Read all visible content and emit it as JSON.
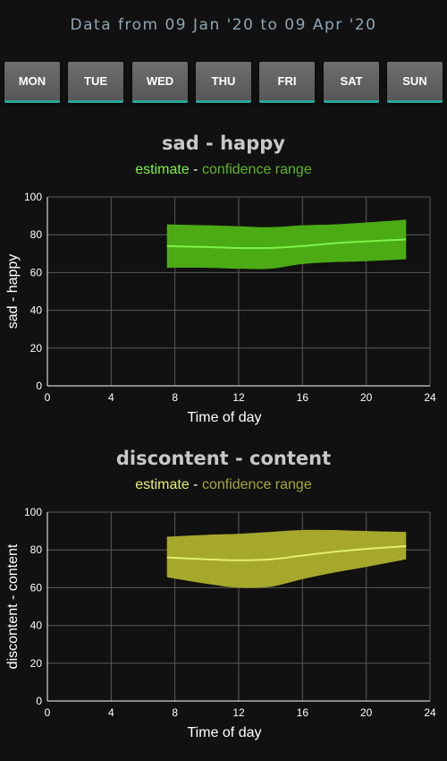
{
  "header": {
    "range_text": "Data from 09 Jan '20 to 09 Apr '20"
  },
  "days": [
    {
      "label": "MON"
    },
    {
      "label": "TUE"
    },
    {
      "label": "WED"
    },
    {
      "label": "THU"
    },
    {
      "label": "FRI"
    },
    {
      "label": "SAT"
    },
    {
      "label": "SUN"
    }
  ],
  "legend_words": {
    "estimate": "estimate",
    "separator": " - ",
    "range": "confidence range"
  },
  "chart_data": [
    {
      "type": "line",
      "title": "sad - happy",
      "xlabel": "Time of day",
      "ylabel": "sad - happy",
      "xlim": [
        0,
        24
      ],
      "ylim": [
        0,
        100
      ],
      "xticks": [
        0,
        4,
        8,
        12,
        16,
        20,
        24
      ],
      "yticks": [
        0,
        20,
        40,
        60,
        80,
        100
      ],
      "grid": true,
      "colors": {
        "line": "#7ef04a",
        "band": "#4cab14",
        "estimate_text": "#7ef04a",
        "range_text": "#5db52a"
      },
      "x": [
        7.5,
        10,
        12,
        14,
        16,
        18,
        20,
        22.5
      ],
      "estimate": [
        74,
        73.5,
        73,
        73,
        74,
        75.5,
        76.5,
        77.5
      ],
      "lower": [
        62.5,
        62.5,
        62,
        62,
        64.5,
        65.5,
        66,
        67
      ],
      "upper": [
        85.5,
        85,
        84.5,
        84,
        85,
        85.5,
        86.5,
        88
      ]
    },
    {
      "type": "line",
      "title": "discontent - content",
      "xlabel": "Time of day",
      "ylabel": "discontent - content",
      "xlim": [
        0,
        24
      ],
      "ylim": [
        0,
        100
      ],
      "xticks": [
        0,
        4,
        8,
        12,
        16,
        20,
        24
      ],
      "yticks": [
        0,
        20,
        40,
        60,
        80,
        100
      ],
      "grid": true,
      "colors": {
        "line": "#e4f070",
        "band": "#a6a82c",
        "estimate_text": "#e4f070",
        "range_text": "#a2a83a"
      },
      "x": [
        7.5,
        10,
        12,
        14,
        16,
        18,
        20,
        22.5
      ],
      "estimate": [
        76,
        75,
        74.5,
        75,
        77,
        79,
        80.5,
        82
      ],
      "lower": [
        65.5,
        62,
        60,
        60.5,
        64.5,
        68,
        71,
        75
      ],
      "upper": [
        87,
        88,
        88.5,
        89.5,
        90.5,
        90.5,
        90,
        89.5
      ]
    }
  ]
}
